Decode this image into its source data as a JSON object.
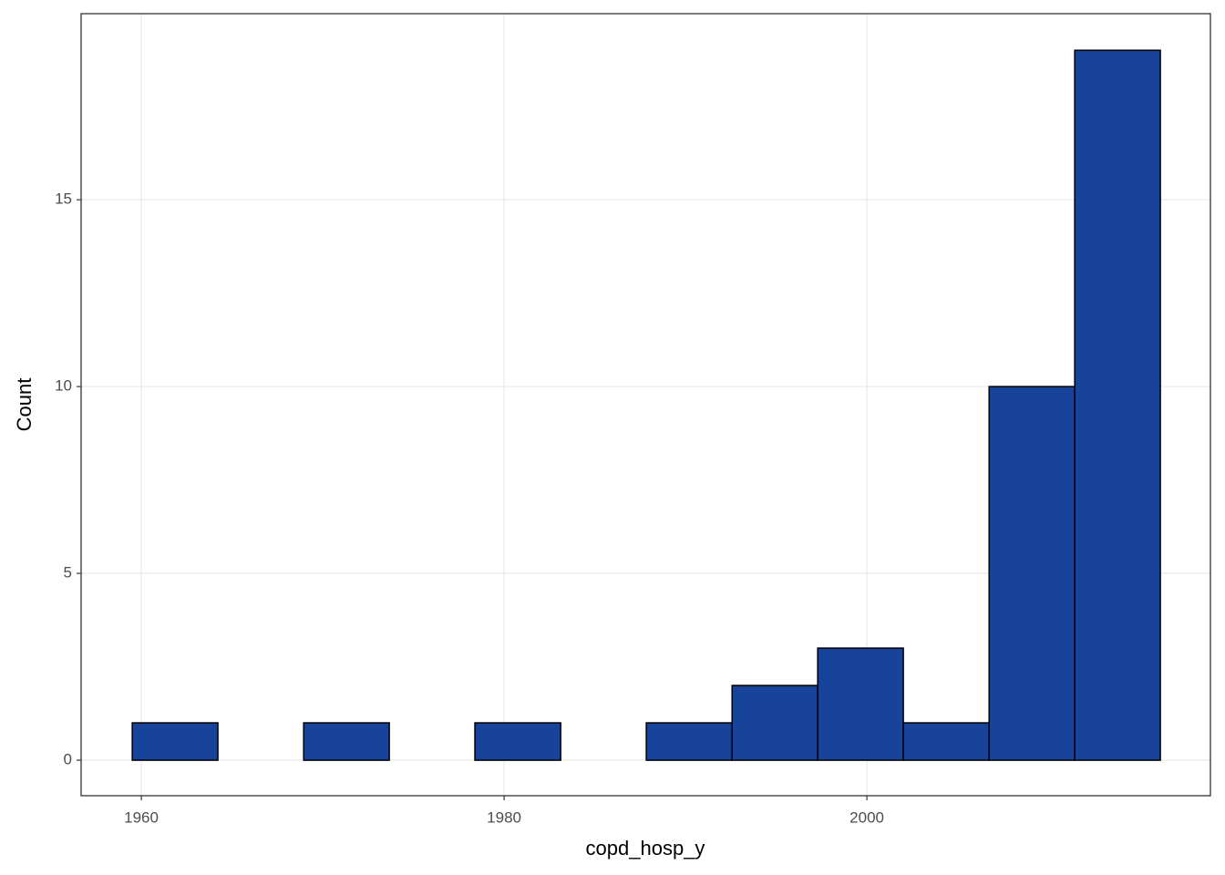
{
  "chart_data": {
    "type": "histogram",
    "x_label": "copd_hosp_y",
    "y_label": "Count",
    "bins": [
      1959.5,
      1964.22,
      1968.95,
      1973.67,
      1978.39,
      1983.12,
      1987.84,
      1992.57,
      1997.29,
      2002.01,
      2006.74,
      2011.46,
      2016.18
    ],
    "counts": [
      1,
      0,
      1,
      0,
      1,
      0,
      1,
      2,
      3,
      1,
      10,
      19
    ],
    "color": "#17449a",
    "xlim": [
      1956.68,
      2018.94
    ],
    "xticks": [
      1960,
      1980,
      2000
    ],
    "ylim": [
      -0.95,
      19.98
    ],
    "yticks": [
      0,
      5,
      10,
      15
    ],
    "grid": true
  }
}
